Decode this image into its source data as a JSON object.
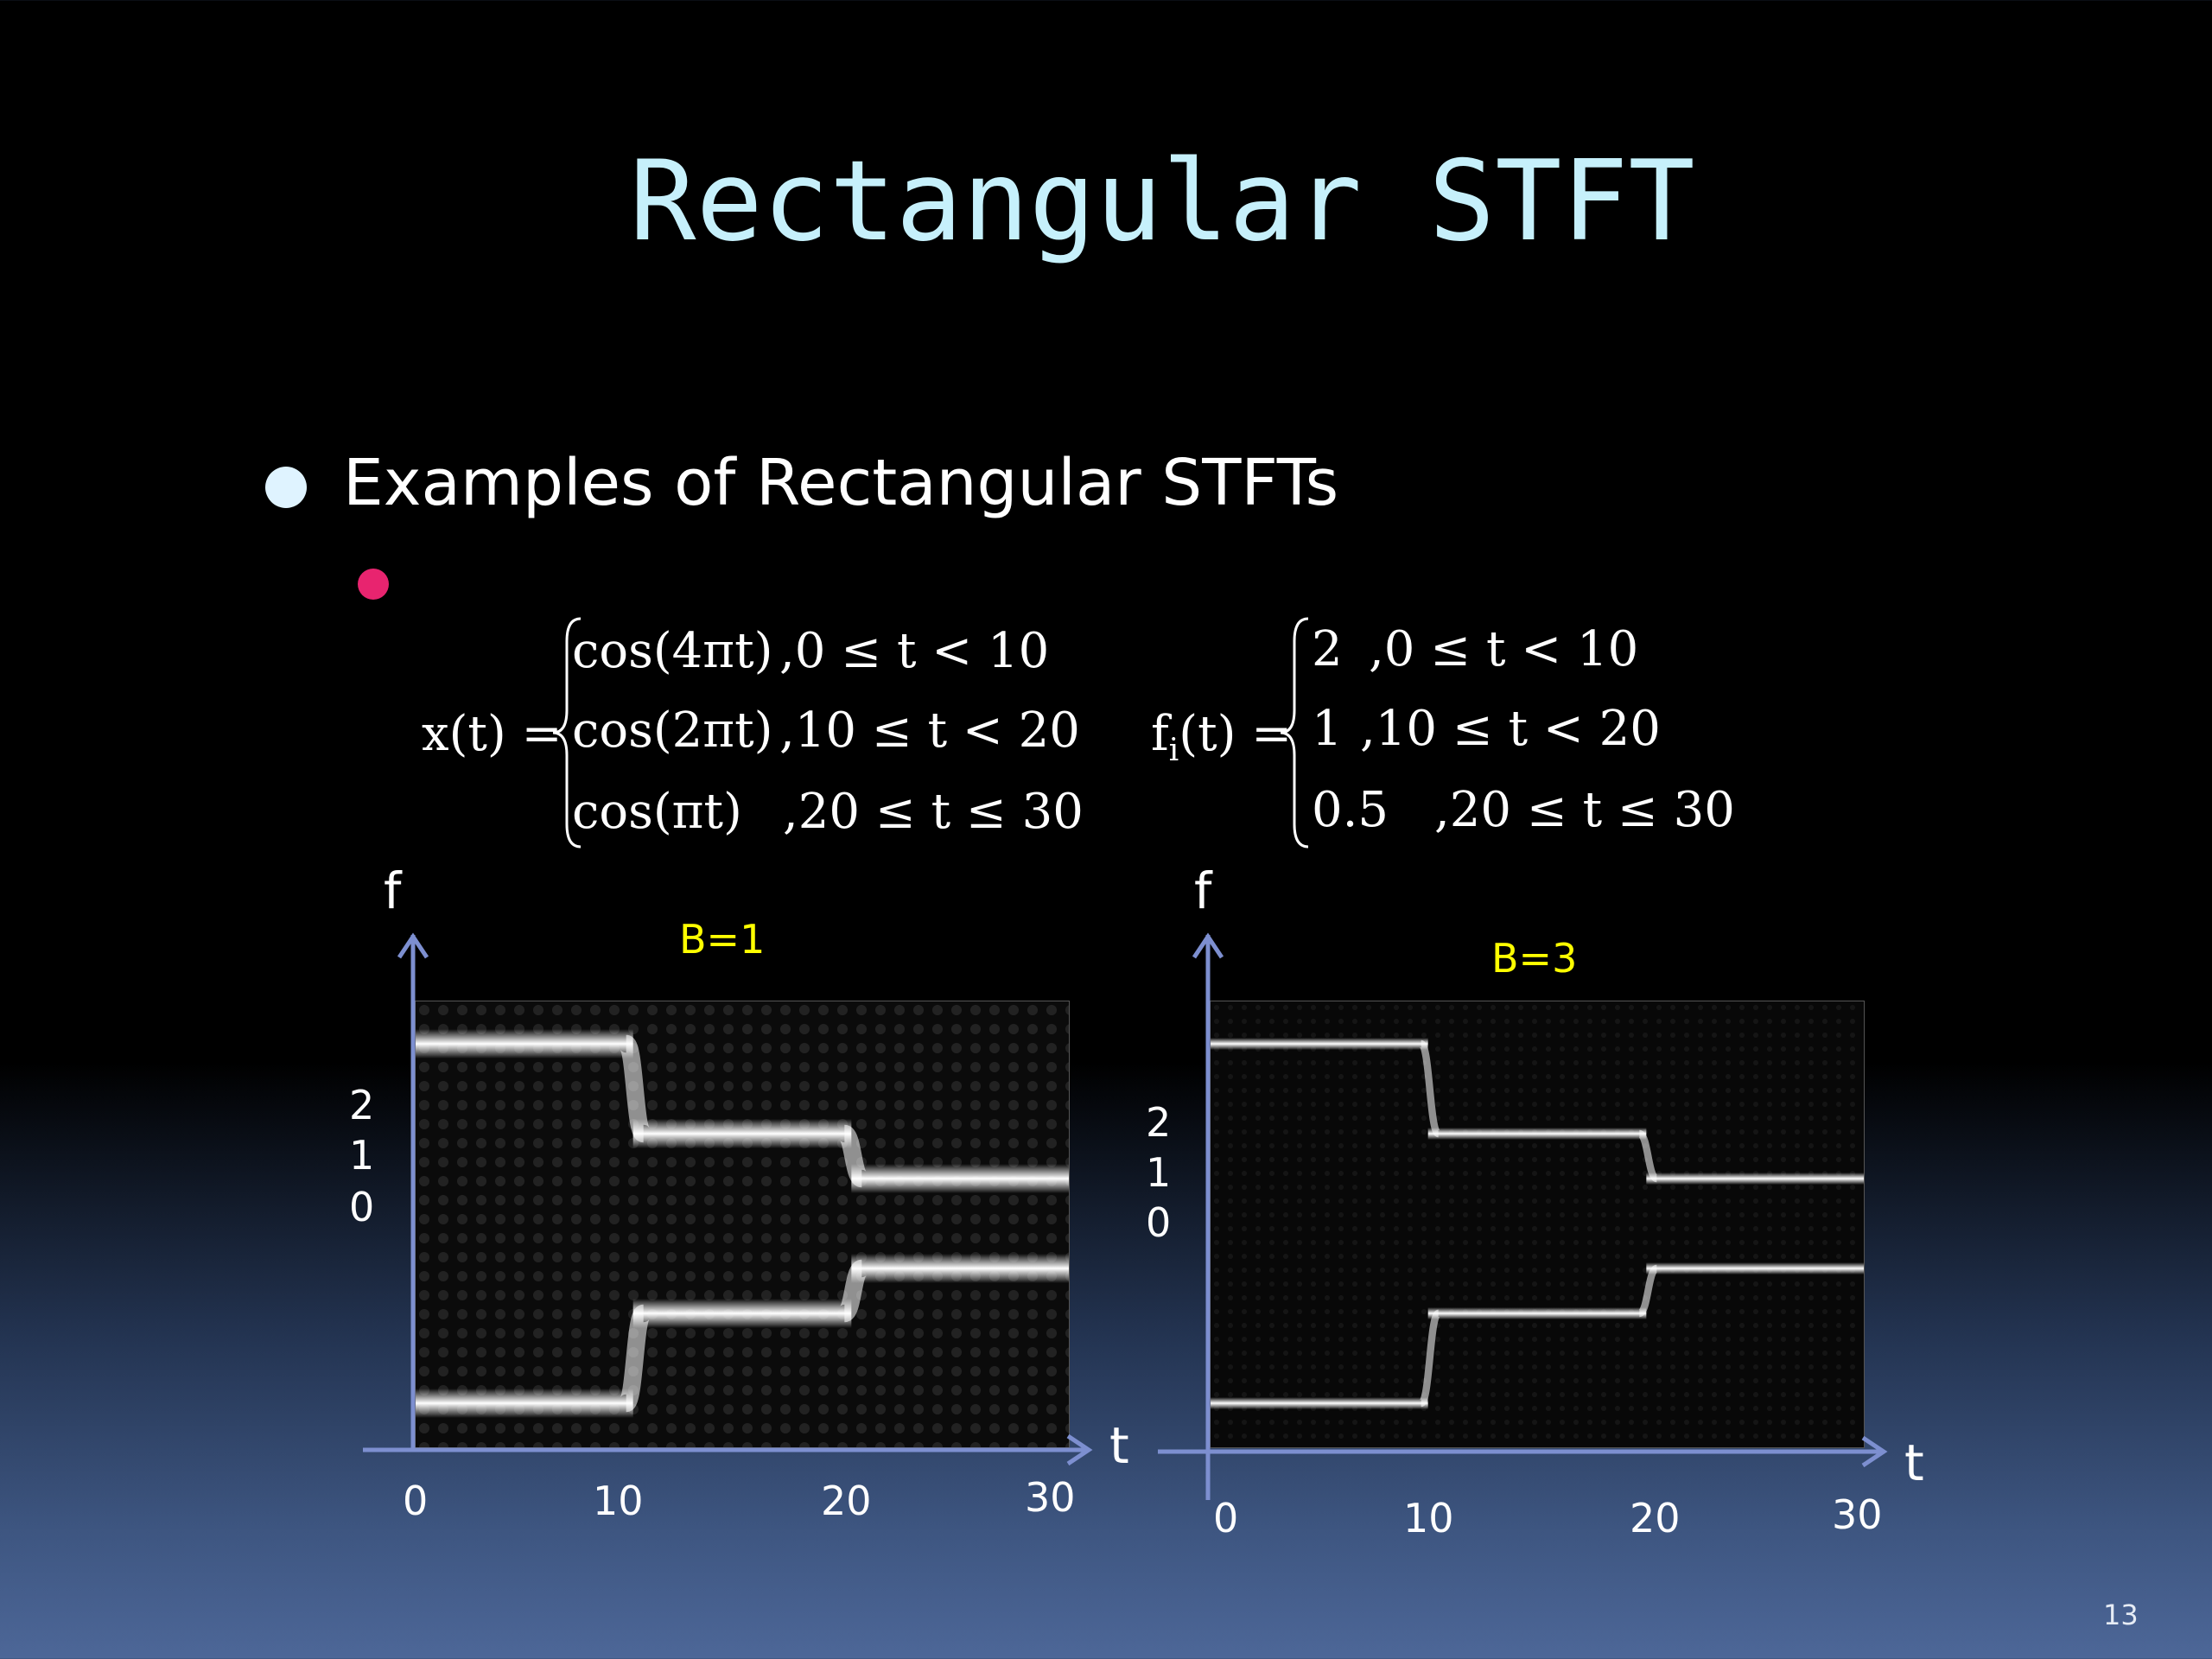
{
  "slide": {
    "title": "Rectangular STFT",
    "bullet": "Examples of Rectangular STFTs",
    "page_number": "13",
    "colors": {
      "title": "#c6f0fb",
      "sub_bullet": "#e8246f",
      "axis": "#7d8fd0",
      "b_label": "#ffff00"
    }
  },
  "equations": {
    "x": {
      "lhs": "x(t) =",
      "cases": [
        {
          "expr": "cos(4πt)",
          "cond": ",0 ≤ t < 10"
        },
        {
          "expr": "cos(2πt)",
          "cond": ",10 ≤ t < 20"
        },
        {
          "expr": "cos(πt)",
          "cond": ",20 ≤ t ≤ 30"
        }
      ]
    },
    "f": {
      "lhs": "f",
      "lhs_sub": "i",
      "lhs_tail": "(t) =",
      "cases": [
        {
          "expr": "2",
          "cond": ",0 ≤ t < 10"
        },
        {
          "expr": "1",
          "cond": ",10 ≤ t < 20"
        },
        {
          "expr": "0.5",
          "cond": ",20 ≤ t ≤ 30"
        }
      ]
    }
  },
  "chart_data": [
    {
      "type": "heatmap",
      "label": "B=1",
      "xlabel": "t",
      "ylabel": "f",
      "xticks": [
        "0",
        "10",
        "20",
        "30"
      ],
      "yticks": [
        "2",
        "1",
        "0"
      ],
      "xlim": [
        0,
        30
      ],
      "band_frequencies": [
        {
          "t_start": 0,
          "t_end": 10,
          "f": [
            2,
            -2
          ]
        },
        {
          "t_start": 10,
          "t_end": 20,
          "f": [
            1,
            -1
          ]
        },
        {
          "t_start": 20,
          "t_end": 30,
          "f": [
            0.5,
            -0.5
          ]
        }
      ]
    },
    {
      "type": "heatmap",
      "label": "B=3",
      "xlabel": "t",
      "ylabel": "f",
      "xticks": [
        "0",
        "10",
        "20",
        "30"
      ],
      "yticks": [
        "2",
        "1",
        "0"
      ],
      "xlim": [
        0,
        30
      ],
      "band_frequencies": [
        {
          "t_start": 0,
          "t_end": 10,
          "f": [
            2,
            -2
          ]
        },
        {
          "t_start": 10,
          "t_end": 20,
          "f": [
            1,
            -1
          ]
        },
        {
          "t_start": 20,
          "t_end": 30,
          "f": [
            0.5,
            -0.5
          ]
        }
      ]
    }
  ]
}
